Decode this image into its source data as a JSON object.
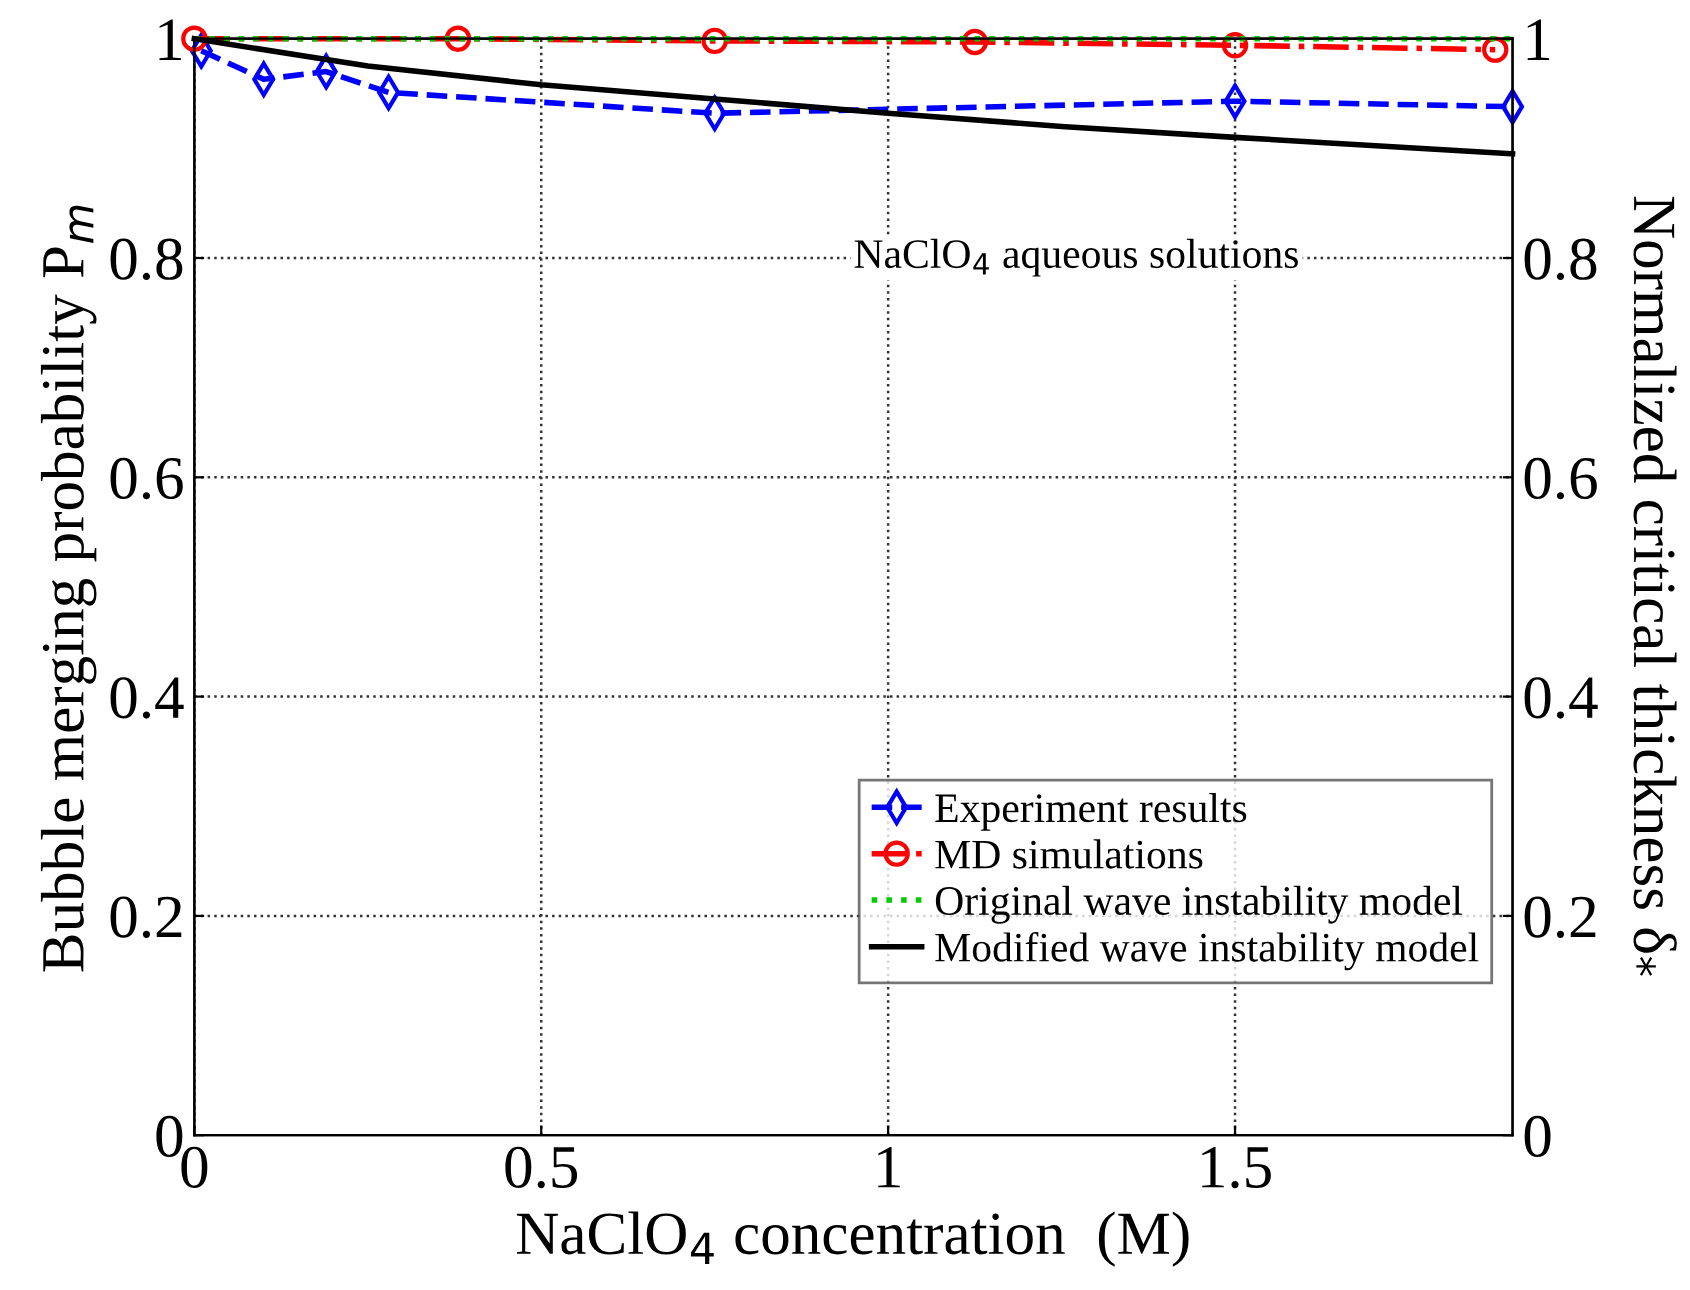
{
  "chart_data": {
    "type": "line",
    "xlabel": "NaClO$_{4}$ concentration  (M)",
    "ylabel": "Bubble merging probability P$_{m}$",
    "y2label": "Normalized critical thickness δ$_{*}$",
    "annotations": [
      "NaClO$_{4}$ aqueous solutions"
    ],
    "xlim": [
      0,
      1.9
    ],
    "xticks": [
      0,
      0.5,
      1,
      1.5
    ],
    "ylim": [
      0,
      1
    ],
    "yticks": [
      0,
      0.2,
      0.4,
      0.6,
      0.8,
      1
    ],
    "y2lim": [
      0,
      1
    ],
    "y2ticks": [
      0,
      0.2,
      0.4,
      0.6,
      0.8,
      1
    ],
    "grid": true,
    "legend": "lower right",
    "series": [
      {
        "name": "Experiment results",
        "color": "#0000ff",
        "marker": "diamond",
        "line_style": "dashed",
        "x": [
          0.01,
          0.1,
          0.19,
          0.28,
          0.75,
          1.5,
          1.9
        ],
        "values": [
          0.989,
          0.963,
          0.97,
          0.951,
          0.932,
          0.943,
          0.938
        ]
      },
      {
        "name": "MD simulations",
        "color": "#ff0000",
        "marker": "circle",
        "line_style": "dashdot",
        "x": [
          0,
          0.38,
          0.75,
          1.125,
          1.5,
          1.875
        ],
        "values": [
          1.0,
          1.0,
          0.998,
          0.997,
          0.994,
          0.99
        ]
      },
      {
        "name": "Original wave instability model",
        "color": "#00cc00",
        "marker": "none",
        "line_style": "dotted",
        "x": [
          0,
          1.9
        ],
        "values": [
          1.0,
          1.0
        ]
      },
      {
        "name": "Modified wave instability model",
        "color": "#000000",
        "marker": "none",
        "line_style": "solid",
        "x": [
          0,
          0.25,
          0.5,
          0.75,
          1,
          1.25,
          1.5,
          1.9
        ],
        "values": [
          1.0,
          0.975,
          0.958,
          0.945,
          0.932,
          0.92,
          0.91,
          0.895
        ]
      }
    ]
  }
}
